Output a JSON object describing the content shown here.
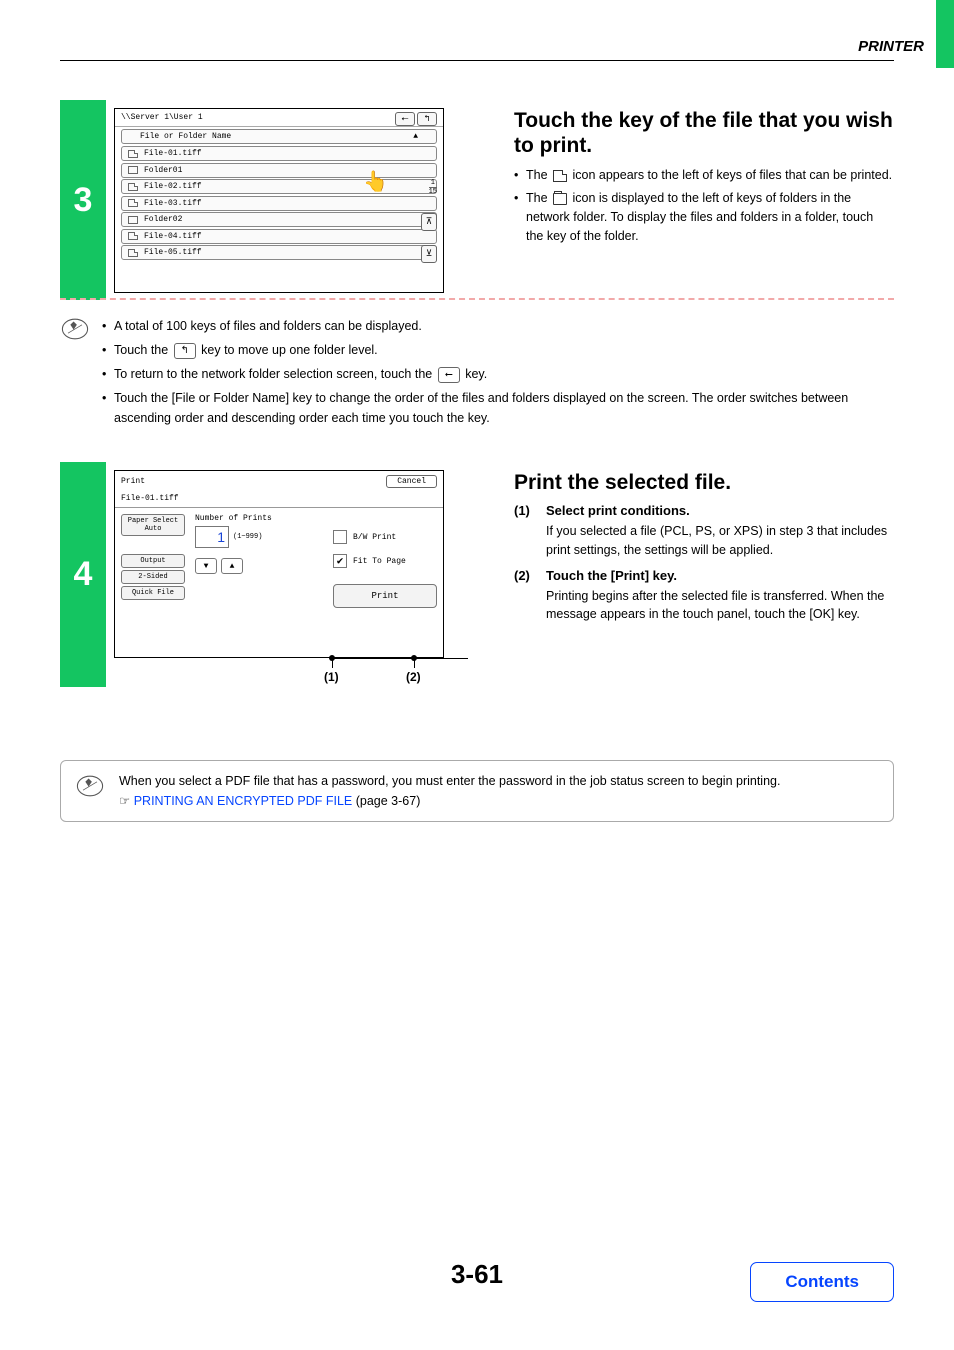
{
  "header": {
    "section": "PRINTER"
  },
  "step3": {
    "num": "3",
    "path": "\\\\Server 1\\User 1",
    "header_key": "File or Folder Name",
    "rows": [
      {
        "type": "file",
        "name": "File-01.tiff"
      },
      {
        "type": "folder",
        "name": "Folder01"
      },
      {
        "type": "file",
        "name": "File-02.tiff"
      },
      {
        "type": "file",
        "name": "File-03.tiff"
      },
      {
        "type": "folder",
        "name": "Folder02"
      },
      {
        "type": "file",
        "name": "File-04.tiff"
      },
      {
        "type": "file",
        "name": "File-05.tiff"
      }
    ],
    "page": "1",
    "total": "15",
    "title": "Touch the key of the file that you wish to print.",
    "b1a": "The ",
    "b1b": " icon appears to the left of keys of files that can be printed.",
    "b2a": "The ",
    "b2b": " icon is displayed to the left of keys of folders in the network folder. To display the files and folders in a folder, touch the key of the folder."
  },
  "note3": {
    "li1": "A total of 100 keys of files and folders can be displayed.",
    "li2a": "Touch the ",
    "li2b": " key to move up one folder level.",
    "li3a": "To return to the network folder selection screen, touch the ",
    "li3b": " key.",
    "li4": "Touch the [File or Folder Name] key to change the order of the files and folders displayed on the screen. The order switches between ascending order and descending order each time you touch the key."
  },
  "step4": {
    "num": "4",
    "print_label": "Print",
    "cancel": "Cancel",
    "filename": "File-01.tiff",
    "paper_select": "Paper Select",
    "auto": "Auto",
    "output": "Output",
    "twosided": "2-Sided",
    "quickfile": "Quick File",
    "nprints_label": "Number of Prints",
    "nprints_value": "1",
    "nprints_range": "(1~999)",
    "bw": "B/W Print",
    "fit": "Fit To Page",
    "printbtn": "Print",
    "co1": "(1)",
    "co2": "(2)",
    "title": "Print the selected file.",
    "i1_num": "(1)",
    "i1_lbl": "Select print conditions.",
    "i1_txt": "If you selected a file (PCL, PS, or XPS) in step 3 that includes print settings, the settings will be applied.",
    "i2_num": "(2)",
    "i2_lbl": "Touch the [Print] key.",
    "i2_txt": "Printing begins after the selected file is transferred. When the message appears in the touch panel, touch the [OK] key."
  },
  "bottomnote": {
    "line1": "When you select a PDF file that has a password, you must enter the password in the job status screen to begin printing.",
    "hand": "☞",
    "link": "PRINTING AN ENCRYPTED PDF FILE",
    "after": " (page 3-67)"
  },
  "pagenum": "3-61",
  "contents": "Contents",
  "colors": {
    "green": "#14c561",
    "link": "#0645ff",
    "dash": "#f2a9a9"
  }
}
